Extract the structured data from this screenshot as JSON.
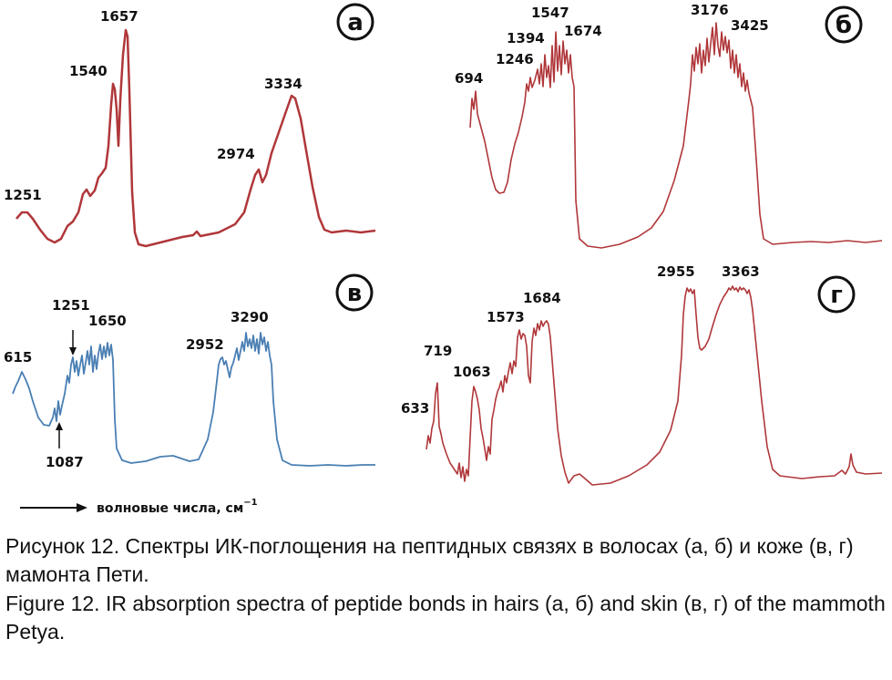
{
  "chart_data": [
    {
      "type": "line",
      "panel_letter": "а",
      "color": "#b0373a",
      "peak_labels": [
        "1251",
        "1540",
        "1657",
        "2974",
        "3334"
      ]
    },
    {
      "type": "line",
      "panel_letter": "б",
      "color": "#b0373a",
      "peak_labels": [
        "694",
        "1246",
        "1394",
        "1547",
        "1674",
        "3176",
        "3425"
      ]
    },
    {
      "type": "line",
      "panel_letter": "в",
      "color": "#4a7fb3",
      "peak_labels": [
        "615",
        "1251",
        "1650",
        "1087",
        "2952",
        "3290"
      ]
    },
    {
      "type": "line",
      "panel_letter": "г",
      "color": "#b0373a",
      "peak_labels": [
        "633",
        "719",
        "1063",
        "1573",
        "1684",
        "2955",
        "3363"
      ]
    }
  ],
  "axis_note": {
    "text": "волновые числа, см",
    "superscript": "−1"
  },
  "caption": {
    "ru": "Рисунок 12. Спектры ИК-поглощения на пептидных связях в волосах (а, б) и коже (в, г) мамонта Пети.",
    "en": "Figure 12. IR absorption spectra of peptide bonds in hairs (а, б) and skin (в, г) of the mammoth Petya."
  }
}
